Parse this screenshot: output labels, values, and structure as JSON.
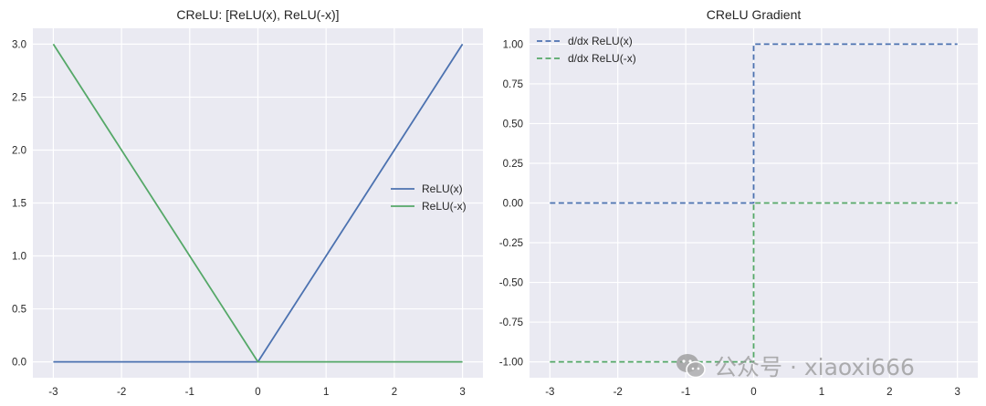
{
  "colors": {
    "axes_bg": "#eaeaf2",
    "grid": "#ffffff",
    "blue": "#4c72b0",
    "green": "#55a868"
  },
  "watermark": {
    "icon": "wechat-icon",
    "text": "公众号 · xiaoxi666"
  },
  "chart_data": [
    {
      "type": "line",
      "title": "CReLU: [ReLU(x), ReLU(-x)]",
      "xlabel": "",
      "ylabel": "",
      "xlim": [
        -3.3,
        3.3
      ],
      "ylim": [
        -0.15,
        3.15
      ],
      "xticks": [
        -3,
        -2,
        -1,
        0,
        1,
        2,
        3
      ],
      "xtick_labels": [
        "-3",
        "-2",
        "-1",
        "0",
        "1",
        "2",
        "3"
      ],
      "yticks": [
        0,
        0.5,
        1,
        1.5,
        2,
        2.5,
        3
      ],
      "ytick_labels": [
        "0.0",
        "0.5",
        "1.0",
        "1.5",
        "2.0",
        "2.5",
        "3.0"
      ],
      "grid": true,
      "legend_position": "center-right",
      "series": [
        {
          "name": "ReLU(x)",
          "color": "#4c72b0",
          "dash": "solid",
          "x": [
            -3,
            0,
            3
          ],
          "y": [
            0,
            0,
            3
          ]
        },
        {
          "name": "ReLU(-x)",
          "color": "#55a868",
          "dash": "solid",
          "x": [
            -3,
            0,
            3
          ],
          "y": [
            3,
            0,
            0
          ]
        }
      ]
    },
    {
      "type": "line",
      "title": "CReLU Gradient",
      "xlabel": "",
      "ylabel": "",
      "xlim": [
        -3.3,
        3.3
      ],
      "ylim": [
        -1.1,
        1.1
      ],
      "xticks": [
        -3,
        -2,
        -1,
        0,
        1,
        2,
        3
      ],
      "xtick_labels": [
        "-3",
        "-2",
        "-1",
        "0",
        "1",
        "2",
        "3"
      ],
      "yticks": [
        -1,
        -0.75,
        -0.5,
        -0.25,
        0,
        0.25,
        0.5,
        0.75,
        1
      ],
      "ytick_labels": [
        "-1.00",
        "-0.75",
        "-0.50",
        "-0.25",
        "0.00",
        "0.25",
        "0.50",
        "0.75",
        "1.00"
      ],
      "grid": true,
      "legend_position": "upper-left",
      "series": [
        {
          "name": "d/dx ReLU(x)",
          "color": "#4c72b0",
          "dash": "dashed",
          "x": [
            -3,
            0,
            0,
            3
          ],
          "y": [
            0,
            0,
            1,
            1
          ]
        },
        {
          "name": "d/dx ReLU(-x)",
          "color": "#55a868",
          "dash": "dashed",
          "x": [
            -3,
            0,
            0,
            3
          ],
          "y": [
            -1,
            -1,
            0,
            0
          ]
        }
      ]
    }
  ]
}
